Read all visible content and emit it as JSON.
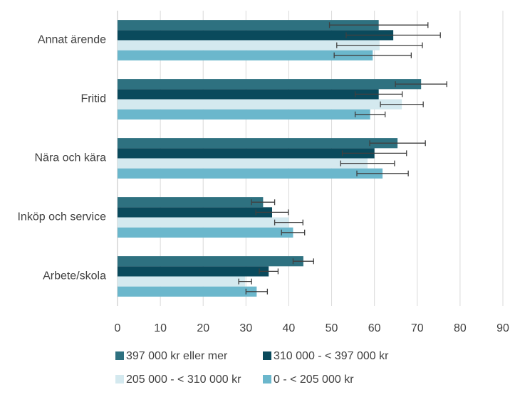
{
  "chart_data": {
    "type": "hbar",
    "categories": [
      "Annat ärende",
      "Fritid",
      "Nära och kära",
      "Inköp och service",
      "Arbete/skola"
    ],
    "series": [
      {
        "name": "397 000 kr eller mer",
        "color": "#2e7180",
        "values": [
          61,
          70.9,
          65.4,
          34,
          43.4
        ],
        "errors": [
          11.5,
          6,
          6.5,
          2.7,
          2.4
        ]
      },
      {
        "name": "310 000 - < 397 000 kr",
        "color": "#0a4a5c",
        "values": [
          64.4,
          61,
          60,
          36.1,
          35.3
        ],
        "errors": [
          11,
          5.5,
          7.5,
          3.8,
          2.2
        ]
      },
      {
        "name": "205 000 - < 310 000 kr",
        "color": "#d4e9ef",
        "values": [
          61.2,
          66.4,
          58.4,
          40,
          29.8
        ],
        "errors": [
          10,
          5,
          6.3,
          3.3,
          1.5
        ]
      },
      {
        "name": "0 - < 205 000 kr",
        "color": "#6bb7cc",
        "values": [
          59.6,
          59,
          61.9,
          41,
          32.5
        ],
        "errors": [
          9,
          3.5,
          6,
          2.7,
          2.5
        ]
      }
    ],
    "xlim": [
      0,
      90
    ],
    "xticks": [
      0,
      10,
      20,
      30,
      40,
      50,
      60,
      70,
      80,
      90
    ],
    "grid": true,
    "legend": "bottom"
  }
}
